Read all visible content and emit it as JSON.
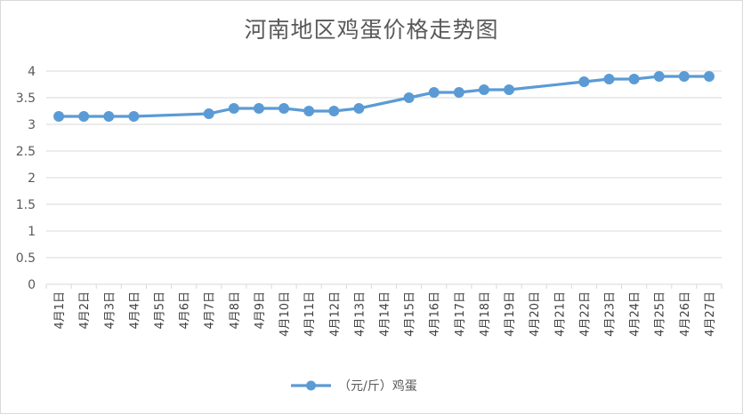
{
  "chart_data": {
    "type": "line",
    "title": "河南地区鸡蛋价格走势图",
    "categories": [
      "4月1日",
      "4月2日",
      "4月3日",
      "4月4日",
      "4月5日",
      "4月6日",
      "4月7日",
      "4月8日",
      "4月9日",
      "4月10日",
      "4月11日",
      "4月12日",
      "4月13日",
      "4月14日",
      "4月15日",
      "4月16日",
      "4月17日",
      "4月18日",
      "4月19日",
      "4月20日",
      "4月21日",
      "4月22日",
      "4月23日",
      "4月24日",
      "4月25日",
      "4月26日",
      "4月27日"
    ],
    "series": [
      {
        "name": "（元/斤）鸡蛋",
        "color": "#5b9bd5",
        "values": [
          3.15,
          3.15,
          3.15,
          3.15,
          null,
          null,
          3.2,
          3.3,
          3.3,
          3.3,
          3.25,
          3.25,
          3.3,
          null,
          3.5,
          3.6,
          3.6,
          3.65,
          3.65,
          null,
          null,
          3.8,
          3.85,
          3.85,
          3.9,
          3.9,
          3.9
        ]
      }
    ],
    "ylim": [
      0,
      4
    ],
    "yticks": [
      "0",
      "0.5",
      "1",
      "1.5",
      "2",
      "2.5",
      "3",
      "3.5",
      "4"
    ],
    "grid": true,
    "legend": "bottom"
  }
}
